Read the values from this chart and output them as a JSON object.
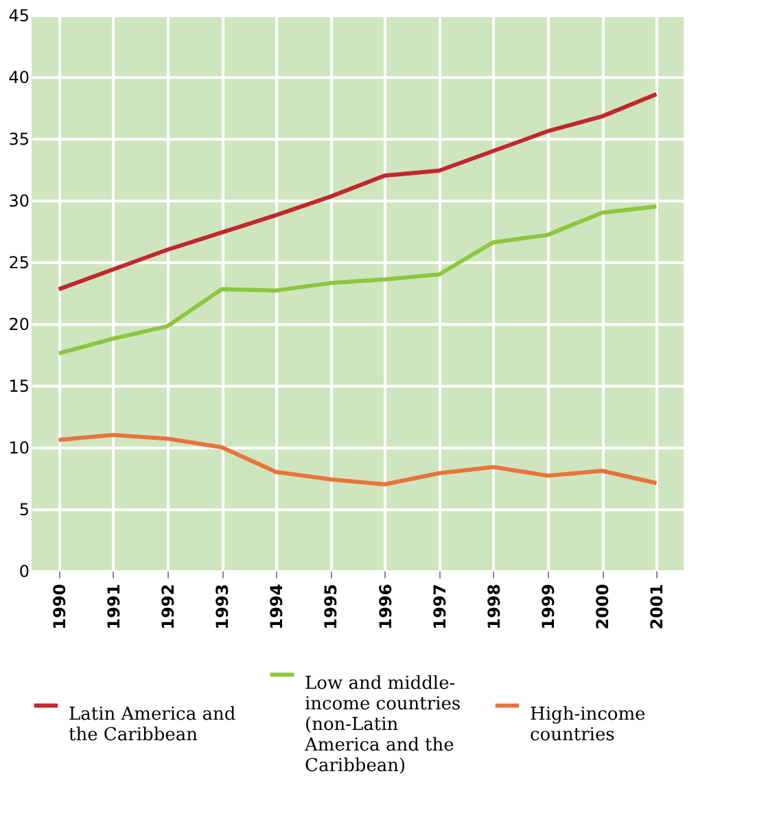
{
  "chart_data": {
    "type": "line",
    "categories": [
      "1990",
      "1991",
      "1992",
      "1993",
      "1994",
      "1995",
      "1996",
      "1997",
      "1998",
      "1999",
      "2000",
      "2001"
    ],
    "series": [
      {
        "name": "Latin America and the Caribbean",
        "color": "#c1272d",
        "values": [
          22.8,
          24.4,
          26.0,
          27.4,
          28.8,
          30.3,
          32.0,
          32.4,
          34.0,
          35.6,
          36.8,
          38.6
        ]
      },
      {
        "name": "Low and middle-income countries (non-Latin America and the Caribbean)",
        "color": "#8dc63f",
        "values": [
          17.6,
          18.8,
          19.8,
          22.8,
          22.7,
          23.3,
          23.6,
          24.0,
          26.6,
          27.2,
          29.0,
          29.5
        ]
      },
      {
        "name": "High-income countries",
        "color": "#e8743b",
        "values": [
          10.6,
          11.0,
          10.7,
          10.0,
          8.0,
          7.4,
          7.0,
          7.9,
          8.4,
          7.7,
          8.1,
          7.1
        ]
      }
    ],
    "ylim": [
      0,
      45
    ],
    "yticks": [
      0,
      5,
      10,
      15,
      20,
      25,
      30,
      35,
      40,
      45
    ],
    "grid": true,
    "legend": "bottom",
    "marker": "none",
    "line_style": "solid"
  }
}
